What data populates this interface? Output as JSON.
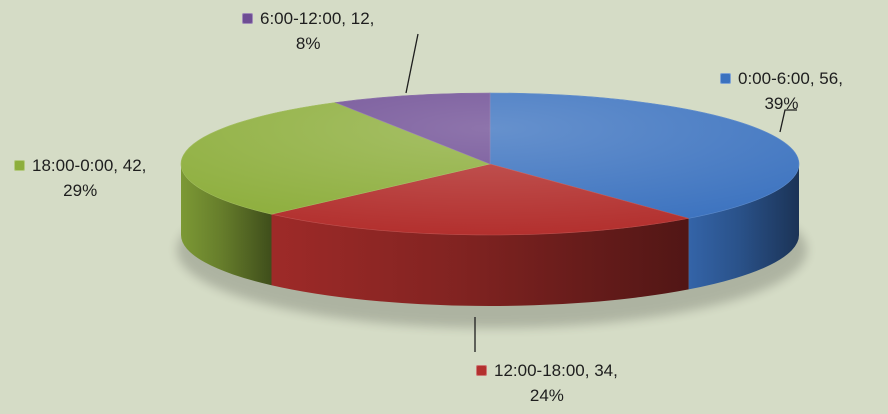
{
  "chart_data": {
    "type": "pie",
    "style": "3d",
    "legend": "none",
    "slices": [
      {
        "category": "0:00-6:00",
        "value": 56,
        "percent": "39%",
        "color": "#3b72bf",
        "label_line1": "0:00-6:00, 56,",
        "label_line2": "39%"
      },
      {
        "category": "12:00-18:00",
        "value": 34,
        "percent": "24%",
        "color": "#b3302e",
        "label_line1": "12:00-18:00, 34,",
        "label_line2": "24%"
      },
      {
        "category": "18:00-0:00",
        "value": 42,
        "percent": "29%",
        "color": "#8dae3c",
        "label_line1": "18:00-0:00, 42,",
        "label_line2": "29%"
      },
      {
        "category": "6:00-12:00",
        "value": 12,
        "percent": "8%",
        "color": "#6e4d94",
        "label_line1": "6:00-12:00, 12,",
        "label_line2": "8%"
      }
    ]
  }
}
